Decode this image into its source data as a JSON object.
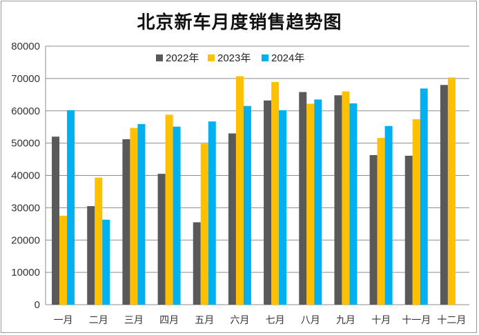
{
  "chart_data": {
    "type": "bar",
    "title": "北京新车月度销售趋势图",
    "categories": [
      "一月",
      "二月",
      "三月",
      "四月",
      "五月",
      "六月",
      "七月",
      "八月",
      "九月",
      "十月",
      "十一月",
      "十二月"
    ],
    "series": [
      {
        "name": "2022年",
        "color": "#595959",
        "values": [
          52000,
          30500,
          51200,
          40500,
          25500,
          53000,
          63200,
          65800,
          64800,
          46300,
          46100,
          68000
        ]
      },
      {
        "name": "2023年",
        "color": "#ffc000",
        "values": [
          27500,
          39300,
          54700,
          58800,
          49800,
          70700,
          68900,
          62200,
          66000,
          51600,
          57400,
          70300
        ]
      },
      {
        "name": "2024年",
        "color": "#00b0f0",
        "values": [
          60200,
          26300,
          55900,
          55100,
          56700,
          61500,
          60200,
          63500,
          62300,
          55300,
          66900,
          null
        ]
      }
    ],
    "ylim": [
      0,
      80000
    ],
    "yticks": [
      0,
      10000,
      20000,
      30000,
      40000,
      50000,
      60000,
      70000,
      80000
    ],
    "grid": true,
    "legend": "top"
  }
}
